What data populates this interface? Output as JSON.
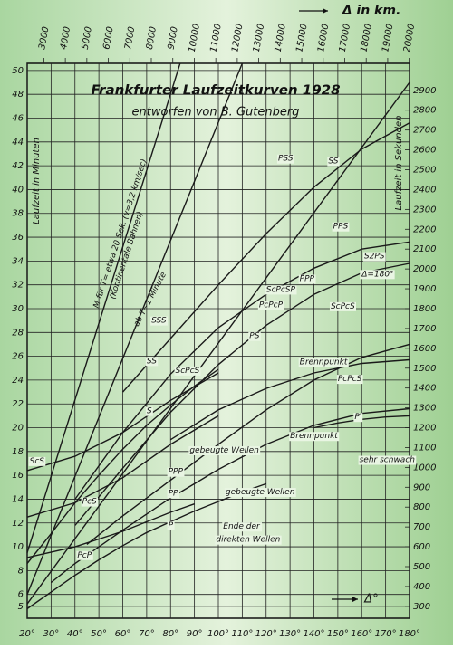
{
  "chart_data": {
    "type": "line",
    "title": "Frankfurter Laufzeitkurven 1928",
    "subtitle": "entworfen von B. Gutenberg",
    "y_label": "Laufzeit in Minuten",
    "y2_label": "Laufzeit in Sekunden",
    "x2_label": "Δ in km.",
    "x_label": "Δ°",
    "xlim": [
      20,
      180
    ],
    "xticks": [
      {
        "value": 20,
        "label": "20°"
      },
      {
        "value": 30,
        "label": "30°"
      },
      {
        "value": 40,
        "label": "40°"
      },
      {
        "value": 50,
        "label": "50°"
      },
      {
        "value": 60,
        "label": "60°"
      },
      {
        "value": 70,
        "label": "70°"
      },
      {
        "value": 80,
        "label": "80°"
      },
      {
        "value": 90,
        "label": "90°"
      },
      {
        "value": 100,
        "label": "100°"
      },
      {
        "value": 110,
        "label": "110°"
      },
      {
        "value": 120,
        "label": "120°"
      },
      {
        "value": 130,
        "label": "130°"
      },
      {
        "value": 140,
        "label": "140°"
      },
      {
        "value": 150,
        "label": "150°"
      },
      {
        "value": 160,
        "label": "160°"
      },
      {
        "value": 170,
        "label": "170°"
      },
      {
        "value": 180,
        "label": "180°"
      }
    ],
    "x2lim": [
      2224,
      20015
    ],
    "x2ticks": [
      3000,
      4000,
      5000,
      6000,
      7000,
      8000,
      9000,
      10000,
      11000,
      12000,
      13000,
      14000,
      15000,
      16000,
      17000,
      18000,
      19000,
      20000
    ],
    "ylim": [
      4,
      50.6
    ],
    "yticks": [
      5,
      6,
      8,
      10,
      12,
      14,
      16,
      18,
      20,
      22,
      24,
      26,
      28,
      30,
      32,
      34,
      36,
      38,
      40,
      42,
      44,
      46,
      48,
      50
    ],
    "y2lim": [
      240,
      3036
    ],
    "y2ticks": [
      300,
      400,
      500,
      600,
      700,
      800,
      900,
      1000,
      1100,
      1200,
      1300,
      1400,
      1500,
      1600,
      1700,
      1800,
      1900,
      2000,
      2100,
      2200,
      2300,
      2400,
      2500,
      2600,
      2700,
      2800,
      2900
    ],
    "grid": true,
    "series": [
      {
        "color": "#1a1a1a",
        "x": [
          20,
          30,
          40,
          50,
          60,
          70,
          80,
          90,
          100,
          110,
          120
        ],
        "values": [
          4.8,
          6.2,
          7.6,
          8.9,
          10.1,
          11.2,
          12.1,
          13.0,
          13.8,
          14.6,
          15.3
        ]
      },
      {
        "color": "#1a1a1a",
        "x": [
          140,
          150,
          160,
          170,
          180
        ],
        "values": [
          20.0,
          20.4,
          20.7,
          20.9,
          21.0
        ]
      },
      {
        "color": "#1a1a1a",
        "x": [
          20,
          30,
          40,
          50,
          60,
          70,
          80,
          90,
          100
        ],
        "values": [
          8.6,
          11.1,
          13.7,
          16.0,
          18.2,
          20.2,
          21.9,
          23.5,
          24.9
        ]
      },
      {
        "color": "#1a1a1a",
        "x": [
          30,
          40,
          60,
          80,
          100,
          120,
          140,
          160,
          180
        ],
        "values": [
          7.0,
          8.6,
          11.4,
          14.1,
          16.5,
          18.6,
          20.2,
          21.2,
          21.6
        ]
      },
      {
        "color": "#1a1a1a",
        "x": [
          40,
          60,
          80,
          100,
          120,
          140,
          160,
          180
        ],
        "values": [
          14.0,
          19.6,
          24.5,
          28.4,
          31.2,
          33.4,
          35.0,
          35.6
        ]
      },
      {
        "color": "#1a1a1a",
        "x": [
          45,
          60,
          80,
          100,
          120,
          140,
          160,
          180
        ],
        "values": [
          10.2,
          12.6,
          15.6,
          18.6,
          21.5,
          24.0,
          25.9,
          27.0
        ]
      },
      {
        "color": "#1a1a1a",
        "x": [
          60,
          80,
          100,
          120,
          140,
          160,
          180
        ],
        "values": [
          23.0,
          27.5,
          32.0,
          36.3,
          40.2,
          43.4,
          45.6
        ]
      },
      {
        "color": "#1a1a1a",
        "x": [
          40,
          60,
          80,
          100,
          120,
          140,
          160,
          180
        ],
        "values": [
          11.8,
          16.6,
          21.3,
          25.3,
          28.6,
          31.2,
          33.0,
          33.8
        ]
      },
      {
        "color": "#1a1a1a",
        "x": [
          20,
          40,
          60,
          80,
          90
        ],
        "values": [
          9.1,
          10.0,
          11.3,
          12.9,
          13.6
        ]
      },
      {
        "color": "#1a1a1a",
        "x": [
          20,
          40,
          60,
          80,
          100
        ],
        "values": [
          16.4,
          17.6,
          19.6,
          22.3,
          24.6
        ]
      },
      {
        "color": "#1a1a1a",
        "x": [
          20,
          40,
          60,
          80,
          100
        ],
        "values": [
          12.5,
          13.7,
          15.8,
          18.6,
          21.0
        ]
      },
      {
        "color": "#1a1a1a",
        "x": [
          80,
          100,
          120,
          140,
          160,
          180
        ],
        "values": [
          19.0,
          21.5,
          23.3,
          24.6,
          25.4,
          25.7
        ]
      },
      {
        "color": "#1a1a1a",
        "x": [
          20,
          84
        ],
        "values": [
          9.5,
          50.6
        ]
      },
      {
        "color": "#1a1a1a",
        "x": [
          20,
          110
        ],
        "values": [
          6.0,
          50.6
        ]
      },
      {
        "color": "#1a1a1a",
        "x": [
          20,
          180
        ],
        "values": [
          5.2,
          49.0
        ]
      }
    ],
    "annotations": [
      {
        "text": "PSS",
        "x": 125,
        "y": 42.6
      },
      {
        "text": "SS",
        "x": 146,
        "y": 42.4
      },
      {
        "text": "PPS",
        "x": 148,
        "y": 36.9
      },
      {
        "text": "S2PS",
        "x": 161,
        "y": 34.4
      },
      {
        "text": "Δ=180°",
        "x": 160,
        "y": 32.9
      },
      {
        "text": "PPP",
        "x": 134,
        "y": 32.5
      },
      {
        "text": "ScPcSP",
        "x": 120,
        "y": 31.6
      },
      {
        "text": "ScPcS",
        "x": 147,
        "y": 30.2
      },
      {
        "text": "PcPcP",
        "x": 117,
        "y": 30.3
      },
      {
        "text": "SSS",
        "x": 72,
        "y": 29.0
      },
      {
        "text": "PS",
        "x": 113,
        "y": 27.7
      },
      {
        "text": "SS",
        "x": 70,
        "y": 25.6
      },
      {
        "text": "ScPcS",
        "x": 82,
        "y": 24.8
      },
      {
        "text": "S",
        "x": 70,
        "y": 21.4
      },
      {
        "text": "Brennpunkt",
        "x": 134,
        "y": 25.5
      },
      {
        "text": "PcPcS",
        "x": 150,
        "y": 24.1
      },
      {
        "text": "P'",
        "x": 157,
        "y": 20.9
      },
      {
        "text": "gebeugte Wellen",
        "x": 88,
        "y": 18.1
      },
      {
        "text": "Brennpunkt",
        "x": 130,
        "y": 19.3
      },
      {
        "text": "sehr schwach",
        "x": 159,
        "y": 17.3
      },
      {
        "text": "PPP",
        "x": 79,
        "y": 16.3
      },
      {
        "text": "PP",
        "x": 79,
        "y": 14.5
      },
      {
        "text": "gebeugte Wellen",
        "x": 103,
        "y": 14.6
      },
      {
        "text": "P",
        "x": 79,
        "y": 11.8
      },
      {
        "text": "Ende der",
        "x": 102,
        "y": 11.7
      },
      {
        "text": "direkten Wellen",
        "x": 99,
        "y": 10.6
      },
      {
        "text": "PcS",
        "x": 43,
        "y": 13.8
      },
      {
        "text": "PcP",
        "x": 41,
        "y": 9.3
      },
      {
        "text": "ScS",
        "x": 21,
        "y": 17.2
      }
    ],
    "steep_labels": [
      "M für T= etwa 20 Sek. (v=3,2 km/sec)",
      "(Kontinentale Bahnen)",
      "ab T~1 Minute"
    ]
  }
}
